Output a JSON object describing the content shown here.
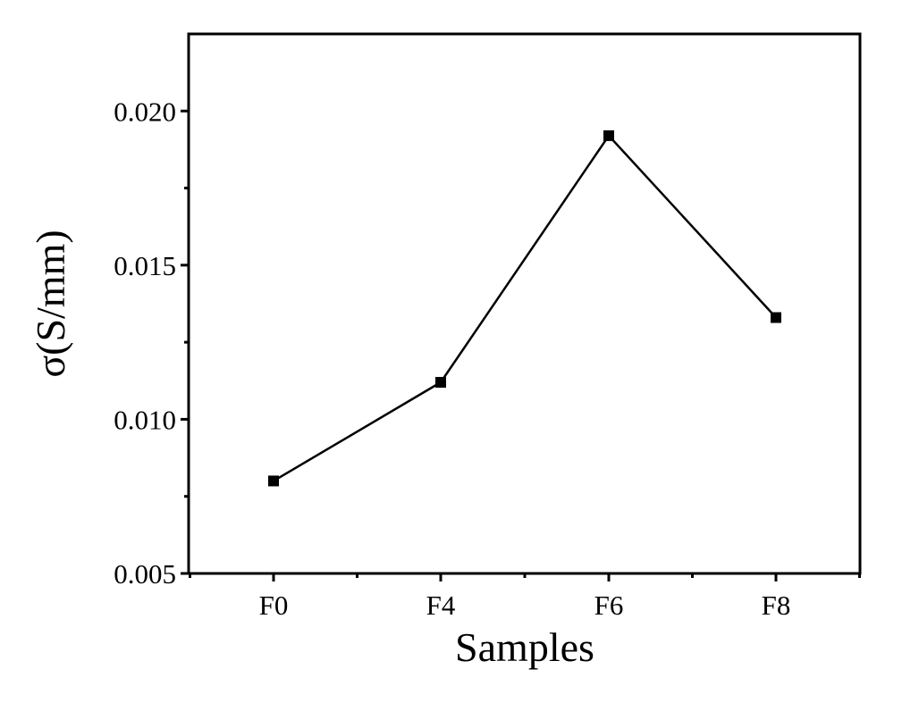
{
  "chart_data": {
    "type": "line",
    "title": "",
    "xlabel": "Samples",
    "ylabel": "σ(S/mm)",
    "categories": [
      "F0",
      "F4",
      "F6",
      "F8"
    ],
    "series": [
      {
        "values": [
          0.008,
          0.0112,
          0.0192,
          0.0133
        ],
        "marker": "square",
        "color": "#000000"
      }
    ],
    "ylim": [
      0.005,
      0.0225
    ],
    "yticks": [
      0.005,
      0.01,
      0.015,
      0.02
    ],
    "ytick_labels": [
      "0.005",
      "0.010",
      "0.015",
      "0.020"
    ],
    "grid": false,
    "legend": "none"
  }
}
